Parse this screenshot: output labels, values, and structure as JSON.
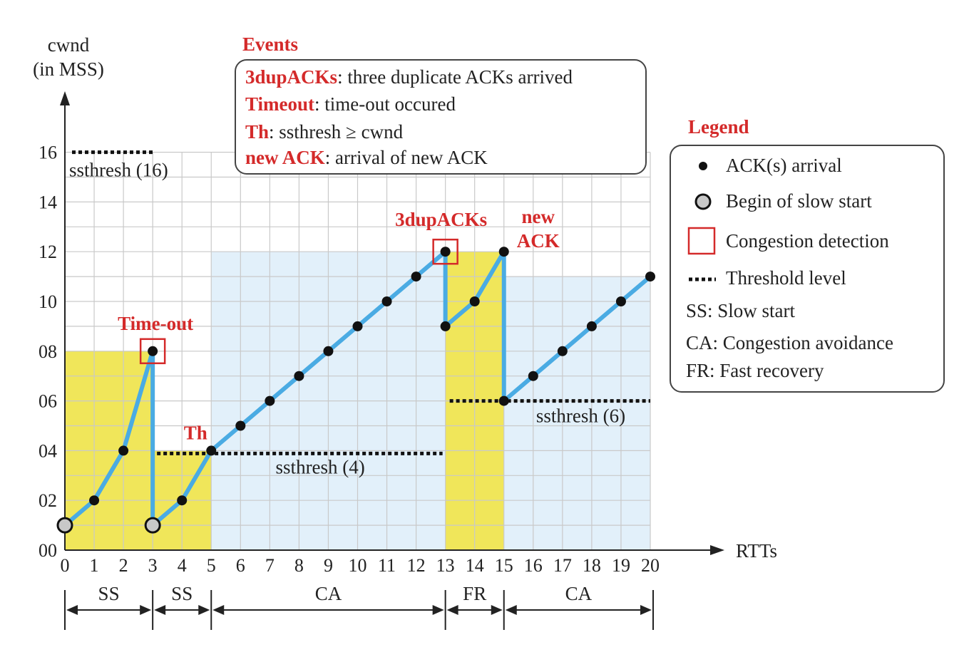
{
  "chart_data": {
    "type": "line",
    "ylabel_line1": "cwnd",
    "ylabel_line2": "(in MSS)",
    "xlabel": "RTTs",
    "xlim": [
      0,
      20
    ],
    "ylim": [
      0,
      16
    ],
    "x_ticks": [
      "0",
      "1",
      "2",
      "3",
      "4",
      "5",
      "6",
      "7",
      "8",
      "9",
      "10",
      "11",
      "12",
      "13",
      "14",
      "15",
      "16",
      "17",
      "18",
      "19",
      "20"
    ],
    "y_ticks": [
      {
        "value": 0,
        "label": "00"
      },
      {
        "value": 2,
        "label": "02"
      },
      {
        "value": 4,
        "label": "04"
      },
      {
        "value": 6,
        "label": "06"
      },
      {
        "value": 8,
        "label": "08"
      },
      {
        "value": 10,
        "label": "10"
      },
      {
        "value": 12,
        "label": "12"
      },
      {
        "value": 14,
        "label": "14"
      },
      {
        "value": 16,
        "label": "16"
      }
    ],
    "grid": true,
    "line_color": "#4aabe3",
    "cwnd_path": [
      [
        0,
        1
      ],
      [
        1,
        2
      ],
      [
        2,
        4
      ],
      [
        3,
        8
      ],
      [
        3,
        1
      ],
      [
        4,
        2
      ],
      [
        5,
        4
      ],
      [
        6,
        5
      ],
      [
        7,
        6
      ],
      [
        8,
        7
      ],
      [
        9,
        8
      ],
      [
        10,
        9
      ],
      [
        11,
        10
      ],
      [
        12,
        11
      ],
      [
        13,
        12
      ],
      [
        13,
        9
      ],
      [
        14,
        10
      ],
      [
        15,
        12
      ],
      [
        15,
        6
      ],
      [
        16,
        7
      ],
      [
        17,
        8
      ],
      [
        18,
        9
      ],
      [
        19,
        10
      ],
      [
        20,
        11
      ]
    ],
    "ack_points": [
      [
        1,
        2
      ],
      [
        2,
        4
      ],
      [
        3,
        8
      ],
      [
        4,
        2
      ],
      [
        5,
        4
      ],
      [
        6,
        5
      ],
      [
        7,
        6
      ],
      [
        8,
        7
      ],
      [
        9,
        8
      ],
      [
        10,
        9
      ],
      [
        11,
        10
      ],
      [
        12,
        11
      ],
      [
        13,
        12
      ],
      [
        13,
        9
      ],
      [
        14,
        10
      ],
      [
        15,
        12
      ],
      [
        15,
        6
      ],
      [
        16,
        7
      ],
      [
        17,
        8
      ],
      [
        18,
        9
      ],
      [
        19,
        10
      ],
      [
        20,
        11
      ]
    ],
    "slow_start_begins": [
      [
        0,
        1
      ],
      [
        3,
        1
      ]
    ],
    "congestion_detections": [
      [
        3,
        8
      ],
      [
        13,
        12
      ]
    ],
    "regions": [
      {
        "x0": 0,
        "x1": 3,
        "y": 8,
        "color": "#f0e65a"
      },
      {
        "x0": 3,
        "x1": 5,
        "y": 4,
        "color": "#f0e65a"
      },
      {
        "x0": 5,
        "x1": 13,
        "y": 12,
        "color": "#e2f0fa"
      },
      {
        "x0": 13,
        "x1": 15,
        "y": 12,
        "color": "#f0e65a"
      },
      {
        "x0": 15,
        "x1": 20,
        "y": 11,
        "color": "#e2f0fa"
      }
    ],
    "thresholds": [
      {
        "x0": 0,
        "x1": 3,
        "y": 16,
        "label": "ssthresh (16)"
      },
      {
        "x0": 3,
        "x1": 13,
        "y": 4,
        "label": "ssthresh (4)"
      },
      {
        "x0": 13,
        "x1": 20,
        "y": 6,
        "label": "ssthresh (6)"
      }
    ],
    "event_labels": [
      {
        "text": "Time-out",
        "x": 3,
        "y": 8
      },
      {
        "text": "Th",
        "x": 5,
        "y": 4
      },
      {
        "text": "3dupACKs",
        "x": 13,
        "y": 12
      },
      {
        "text_line1": "new",
        "text_line2": "ACK",
        "x": 15,
        "y": 12
      }
    ],
    "phases": [
      {
        "label": "SS",
        "x0": 0,
        "x1": 3
      },
      {
        "label": "SS",
        "x0": 3,
        "x1": 5
      },
      {
        "label": "CA",
        "x0": 5,
        "x1": 13
      },
      {
        "label": "FR",
        "x0": 13,
        "x1": 15
      },
      {
        "label": "CA",
        "x0": 15,
        "x1": 20
      }
    ]
  },
  "events_box": {
    "title": "Events",
    "items": [
      {
        "term": "3dupACKs",
        "desc": ": three duplicate ACKs arrived"
      },
      {
        "term": "Timeout",
        "desc": ": time-out occured"
      },
      {
        "term": "Th",
        "desc": ": ssthresh ≥  cwnd"
      },
      {
        "term": "new ACK",
        "desc": ": arrival of new ACK"
      }
    ]
  },
  "legend": {
    "title": "Legend",
    "items": [
      {
        "symbol": "dot",
        "text": "ACK(s) arrival"
      },
      {
        "symbol": "circle",
        "text": "Begin of slow start"
      },
      {
        "symbol": "square",
        "text": "Congestion detection"
      },
      {
        "symbol": "dash",
        "text": "Threshold level"
      },
      {
        "symbol": "none",
        "text": "SS: Slow start"
      },
      {
        "symbol": "none",
        "text": "CA: Congestion avoidance"
      },
      {
        "symbol": "none",
        "text": "FR: Fast recovery"
      }
    ]
  }
}
